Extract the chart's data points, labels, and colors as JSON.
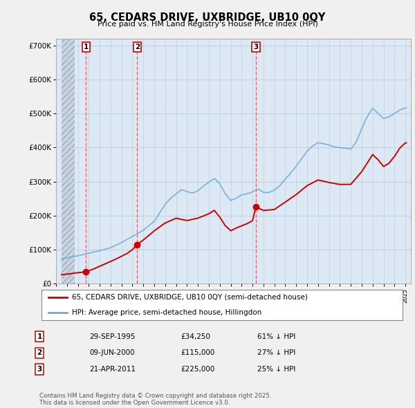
{
  "title": "65, CEDARS DRIVE, UXBRIDGE, UB10 0QY",
  "subtitle": "Price paid vs. HM Land Registry's House Price Index (HPI)",
  "ylim": [
    0,
    720000
  ],
  "yticks": [
    0,
    100000,
    200000,
    300000,
    400000,
    500000,
    600000,
    700000
  ],
  "sale_prices": [
    34250,
    115000,
    225000
  ],
  "sale_labels": [
    "1",
    "2",
    "3"
  ],
  "sale_year_floats": [
    1995.75,
    2000.44,
    2011.3
  ],
  "sale_date_strs": [
    "29-SEP-1995",
    "09-JUN-2000",
    "21-APR-2011"
  ],
  "sale_pct_strs": [
    "61% ↓ HPI",
    "27% ↓ HPI",
    "25% ↓ HPI"
  ],
  "sale_price_strs": [
    "£34,250",
    "£115,000",
    "£225,000"
  ],
  "legend_label_red": "65, CEDARS DRIVE, UXBRIDGE, UB10 0QY (semi-detached house)",
  "legend_label_blue": "HPI: Average price, semi-detached house, Hillingdon",
  "footer": "Contains HM Land Registry data © Crown copyright and database right 2025.\nThis data is licensed under the Open Government Licence v3.0.",
  "bg_color": "#f0f0f0",
  "plot_bg_color": "#dce9f5",
  "hpi_color": "#6baed6",
  "price_color": "#cc0000",
  "vline_color": "#e06060",
  "marker_color": "#cc0000",
  "hatch_color": "#b0b8c8",
  "grid_color": "#c0cfe0",
  "xmin": 1993.5,
  "xmax": 2025.5
}
